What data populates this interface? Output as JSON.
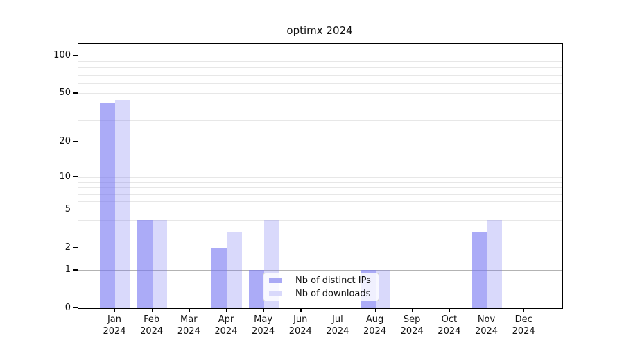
{
  "title": "optimx 2024",
  "colors": {
    "ips": "#7373f2",
    "ips_alpha": 0.6,
    "downloads": "#7373f2",
    "downloads_alpha": 0.27,
    "ips_on_white": "#a9a9f5",
    "downloads_on_white": "#d9d9fb",
    "gridline": "#e7e7e7",
    "gridline_emphasized": "#b3b3b3",
    "spine": "#000000",
    "text": "#111111"
  },
  "legend": {
    "items": [
      {
        "label": "Nb of distinct IPs",
        "series": "ips"
      },
      {
        "label": "Nb of downloads",
        "series": "downloads"
      }
    ],
    "position": "lower center"
  },
  "chart_data": {
    "type": "bar",
    "title": "optimx 2024",
    "xlabel": "",
    "ylabel": "",
    "scale": "log1p",
    "categories": [
      "Jan",
      "Feb",
      "Mar",
      "Apr",
      "May",
      "Jun",
      "Jul",
      "Aug",
      "Sep",
      "Oct",
      "Nov",
      "Dec"
    ],
    "year": "2024",
    "series": [
      {
        "name": "Nb of distinct IPs",
        "values": [
          42,
          4,
          0,
          2,
          1,
          0,
          0,
          1,
          0,
          0,
          3,
          0
        ]
      },
      {
        "name": "Nb of downloads",
        "values": [
          44,
          4,
          0,
          3,
          4,
          0,
          0,
          1,
          0,
          0,
          4,
          0
        ]
      }
    ],
    "yticks": [
      0,
      1,
      2,
      5,
      10,
      20,
      50,
      100
    ],
    "gridlines": [
      1,
      2,
      3,
      4,
      5,
      6,
      7,
      8,
      9,
      10,
      20,
      30,
      40,
      50,
      60,
      70,
      80,
      90,
      100
    ],
    "emphasized_gridline": 1,
    "ylim": [
      0,
      125
    ],
    "grid": "on",
    "legend_position": "lower center"
  }
}
